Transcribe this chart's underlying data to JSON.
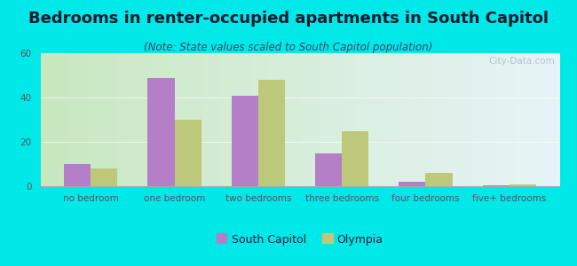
{
  "title": "Bedrooms in renter-occupied apartments in South Capitol",
  "subtitle": "(Note: State values scaled to South Capitol population)",
  "categories": [
    "no bedroom",
    "one bedroom",
    "two bedrooms",
    "three bedrooms",
    "four bedrooms",
    "five+ bedrooms"
  ],
  "south_capitol": [
    10,
    49,
    41,
    15,
    2,
    0.3
  ],
  "olympia": [
    8,
    30,
    48,
    25,
    6,
    0.8
  ],
  "sc_color": "#b57fc8",
  "olympia_color": "#bec87a",
  "background_outer": "#00e8e8",
  "ylim": [
    0,
    60
  ],
  "yticks": [
    0,
    20,
    40,
    60
  ],
  "legend_labels": [
    "South Capitol",
    "Olympia"
  ],
  "watermark": "City-Data.com",
  "bar_width": 0.32,
  "title_fontsize": 13,
  "subtitle_fontsize": 8.5,
  "tick_fontsize": 7.5,
  "legend_fontsize": 9,
  "title_color": "#1a1a2e",
  "subtitle_color": "#444466",
  "tick_color": "#555566",
  "watermark_color": "#aabbcc"
}
